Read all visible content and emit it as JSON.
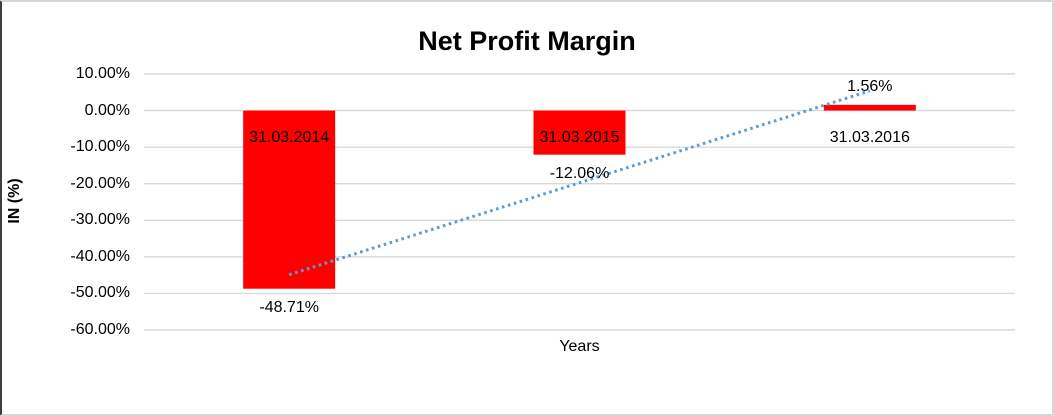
{
  "chart_data": {
    "type": "bar",
    "title": "Net Profit Margin",
    "xlabel": "Years",
    "ylabel": "IN (%)",
    "categories": [
      "31.03.2014",
      "31.03.2015",
      "31.03.2016"
    ],
    "values": [
      -48.71,
      -12.06,
      1.56
    ],
    "data_labels": [
      "-48.71%",
      "-12.06%",
      "1.56%"
    ],
    "ylim": [
      -60,
      10
    ],
    "yticks": [
      {
        "value": 10,
        "label": "10.00%"
      },
      {
        "value": 0,
        "label": "0.00%"
      },
      {
        "value": -10,
        "label": "-10.00%"
      },
      {
        "value": -20,
        "label": "-20.00%"
      },
      {
        "value": -30,
        "label": "-30.00%"
      },
      {
        "value": -40,
        "label": "-40.00%"
      },
      {
        "value": -50,
        "label": "-50.00%"
      },
      {
        "value": -60,
        "label": "-60.00%"
      }
    ],
    "grid": true,
    "legend": "none",
    "bar_color": "#ff0000",
    "gridline_color": "#d9d9d9",
    "trendline": {
      "type": "linear",
      "style": "dotted",
      "color": "#5b9bd5"
    }
  }
}
